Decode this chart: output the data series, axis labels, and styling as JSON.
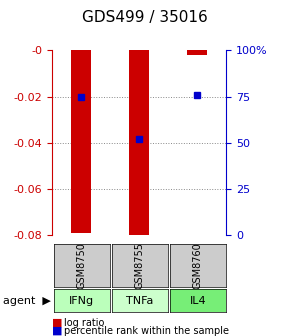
{
  "title": "GDS499 / 35016",
  "samples": [
    "GSM8750",
    "GSM8755",
    "GSM8760"
  ],
  "agents": [
    "IFNg",
    "TNFa",
    "IL4"
  ],
  "log_ratios": [
    -0.079,
    -0.081,
    -0.002
  ],
  "percentile_ranks": [
    0.75,
    0.52,
    0.76
  ],
  "ylim_left": [
    -0.08,
    0.0
  ],
  "ylim_right": [
    0.0,
    1.0
  ],
  "bar_color": "#cc0000",
  "dot_color": "#0000cc",
  "grid_color": "#888888",
  "left_axis_color": "#cc0000",
  "right_axis_color": "#0000cc",
  "sample_bg": "#cccccc",
  "agent_bg_colors": [
    "#aaffaa",
    "#ccffcc",
    "#88ee88"
  ],
  "legend_log_ratio": "log ratio",
  "legend_percentile": "percentile rank within the sample",
  "agent_label": "agent"
}
